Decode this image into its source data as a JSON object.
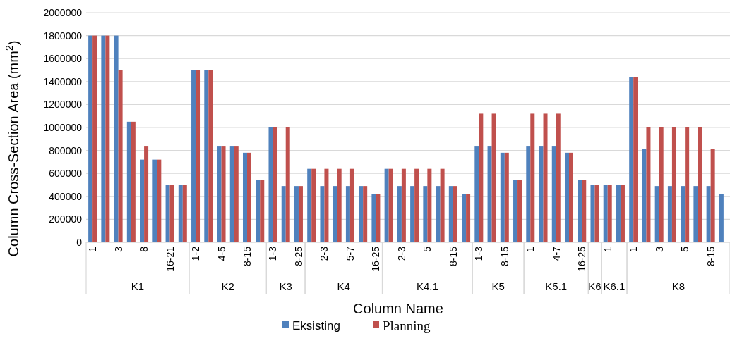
{
  "chart_data": {
    "type": "bar",
    "xlabel": "Column Name",
    "ylabel": "Column Cross-Section Area (mm$^{2}$)",
    "categories": [
      "1",
      null,
      "3",
      null,
      "8",
      null,
      "16-21",
      null,
      "1-2",
      null,
      "4-5",
      null,
      "8-15",
      null,
      "1-3",
      null,
      "8-25",
      null,
      "2-3",
      null,
      "5-7",
      null,
      "16-25",
      null,
      "2-3",
      null,
      "5",
      null,
      "8-15",
      null,
      "1-3",
      null,
      "8-15",
      null,
      "1",
      null,
      "4-7",
      null,
      "16-25",
      null,
      "1",
      null,
      "1",
      null,
      "3",
      null,
      "5",
      null,
      "8-15",
      null
    ],
    "series": [
      {
        "name": "Eksisting",
        "color": "#4f81bd",
        "values": [
          1800000,
          1800000,
          1800000,
          1050000,
          720000,
          720000,
          500000,
          500000,
          1500000,
          1500000,
          840000,
          840000,
          780000,
          540000,
          1000000,
          490000,
          490000,
          640000,
          490000,
          490000,
          490000,
          490000,
          420000,
          640000,
          490000,
          490000,
          490000,
          490000,
          490000,
          420000,
          840000,
          840000,
          780000,
          540000,
          840000,
          840000,
          840000,
          780000,
          540000,
          500000,
          500000,
          500000,
          1440000,
          810000,
          490000,
          490000,
          490000,
          490000,
          490000,
          420000
        ]
      },
      {
        "name": "Planning",
        "color": "#c0504d",
        "values": [
          1800000,
          1800000,
          1500000,
          1050000,
          840000,
          720000,
          500000,
          500000,
          1500000,
          1500000,
          840000,
          840000,
          780000,
          540000,
          1000000,
          1000000,
          490000,
          640000,
          640000,
          640000,
          640000,
          490000,
          420000,
          640000,
          640000,
          640000,
          640000,
          640000,
          490000,
          420000,
          1120000,
          1120000,
          780000,
          540000,
          1120000,
          1120000,
          1120000,
          780000,
          540000,
          500000,
          500000,
          500000,
          1440000,
          1000000,
          1000000,
          1000000,
          1000000,
          1000000,
          810000,
          null
        ]
      }
    ],
    "annotations": [
      "K1",
      "K2",
      "K3",
      "K4",
      "K4.1",
      "K5",
      "K5.1",
      "K6",
      "K6.1",
      "K8"
    ],
    "ylim": [
      0,
      2000000
    ],
    "yticks": [
      0,
      200000,
      400000,
      600000,
      800000,
      1000000,
      1200000,
      1400000,
      1600000,
      1800000,
      2000000
    ],
    "grid": "y",
    "legend": "bottom"
  }
}
